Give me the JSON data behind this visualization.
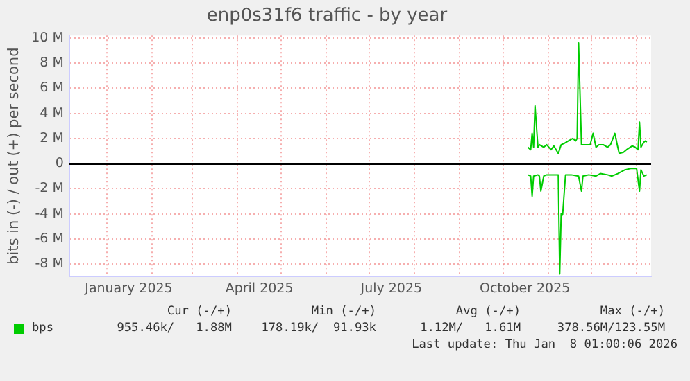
{
  "chart_data": {
    "type": "line",
    "title": "enp0s31f6 traffic - by year",
    "ylabel": "bits in (-) / out (+) per second",
    "xlim": [
      "2024-12-06",
      "2026-01-11"
    ],
    "xticks": [
      {
        "value": "2025-01-01",
        "label": null
      },
      {
        "value": "2025-01-16",
        "label": "January 2025"
      },
      {
        "value": "2025-02-01",
        "label": null
      },
      {
        "value": "2025-03-01",
        "label": null
      },
      {
        "value": "2025-04-01",
        "label": null
      },
      {
        "value": "2025-04-16",
        "label": "April 2025"
      },
      {
        "value": "2025-05-01",
        "label": null
      },
      {
        "value": "2025-06-01",
        "label": null
      },
      {
        "value": "2025-07-01",
        "label": null
      },
      {
        "value": "2025-07-16",
        "label": "July 2025"
      },
      {
        "value": "2025-08-01",
        "label": null
      },
      {
        "value": "2025-09-01",
        "label": null
      },
      {
        "value": "2025-10-01",
        "label": null
      },
      {
        "value": "2025-10-16",
        "label": "October 2025"
      },
      {
        "value": "2025-11-01",
        "label": null
      },
      {
        "value": "2025-12-01",
        "label": null
      },
      {
        "value": "2026-01-01",
        "label": null
      }
    ],
    "ylim": [
      -9,
      10.2
    ],
    "yticks": [
      {
        "value": -8,
        "label": "-8 M"
      },
      {
        "value": -6,
        "label": "-6 M"
      },
      {
        "value": -4,
        "label": "-4 M"
      },
      {
        "value": -2,
        "label": "-2 M"
      },
      0,
      {
        "value": 2,
        "label": "2 M"
      },
      {
        "value": 4,
        "label": "4 M"
      },
      {
        "value": 6,
        "label": "6 M"
      },
      {
        "value": 8,
        "label": "8 M"
      },
      {
        "value": 10,
        "label": "10 M"
      }
    ],
    "grid": true,
    "legend": "bottom left",
    "marker": "none",
    "ref_lines": [
      {
        "axis": "y",
        "value": 0,
        "color": "#000000"
      }
    ],
    "series": [
      {
        "name": "bps",
        "color": "#00cc00",
        "x": [
          "2025-10-18",
          "2025-10-20",
          "2025-10-21",
          "2025-10-22",
          "2025-10-23",
          "2025-10-25",
          "2025-10-26",
          "2025-10-29",
          "2025-10-31",
          "2025-11-03",
          "2025-11-05",
          "2025-11-08",
          "2025-11-10",
          "2025-11-12",
          "2025-11-15",
          "2025-11-18",
          "2025-11-20",
          "2025-11-21",
          "2025-11-22",
          "2025-11-24",
          "2025-11-27",
          "2025-11-30",
          "2025-12-02",
          "2025-12-04",
          "2025-12-06",
          "2025-12-09",
          "2025-12-12",
          "2025-12-14",
          "2025-12-17",
          "2025-12-19",
          "2025-12-20",
          "2025-12-23",
          "2025-12-25",
          "2025-12-29",
          "2025-12-31",
          "2026-01-02",
          "2026-01-03",
          "2026-01-04",
          "2026-01-06",
          "2026-01-07",
          "2026-01-08"
        ],
        "values": [
          1.3,
          1.1,
          2.4,
          1.3,
          4.6,
          1.3,
          1.5,
          1.3,
          1.5,
          1.1,
          1.4,
          0.8,
          1.5,
          1.6,
          1.8,
          2,
          1.8,
          2,
          9.6,
          1.5,
          1.5,
          1.5,
          2.4,
          1.3,
          1.5,
          1.5,
          1.3,
          1.5,
          2.4,
          1.3,
          0.8,
          0.9,
          1.1,
          1.4,
          1.3,
          1.1,
          3.3,
          1.3,
          1.7,
          1.8,
          1.7
        ]
      },
      {
        "color": "#00cc00",
        "x": [
          "2025-10-18",
          "2025-10-20",
          "2025-10-21",
          "2025-10-22",
          "2025-10-25",
          "2025-10-26",
          "2025-10-27",
          "2025-10-29",
          "2025-10-31",
          "2025-11-04",
          "2025-11-08",
          "2025-11-09",
          "2025-11-10",
          "2025-11-11",
          "2025-11-13",
          "2025-11-17",
          "2025-11-22",
          "2025-11-24",
          "2025-11-25",
          "2025-11-29",
          "2025-12-04",
          "2025-12-07",
          "2025-12-12",
          "2025-12-15",
          "2025-12-19",
          "2025-12-24",
          "2025-12-28",
          "2026-01-01",
          "2026-01-03",
          "2026-01-04",
          "2026-01-06",
          "2026-01-08"
        ],
        "values": [
          -0.9,
          -1,
          -2.6,
          -1,
          -0.9,
          -1,
          -2.2,
          -1,
          -0.9,
          -0.9,
          -0.9,
          -8.8,
          -4,
          -4.1,
          -0.9,
          -0.9,
          -1,
          -2.2,
          -1,
          -0.9,
          -1,
          -0.8,
          -0.9,
          -1,
          -0.8,
          -0.5,
          -0.4,
          -0.4,
          -2.2,
          -0.5,
          -1,
          -0.9
        ]
      }
    ],
    "annotations": [
      "Cur (-/+)",
      "Min (-/+)",
      "Avg (-/+)",
      "Max (-/+)",
      "955.46k/   1.88M",
      "178.19k/  91.93k",
      "1.12M/   1.61M",
      "378.56M/123.55M",
      "Last update: Thu Jan  8 01:00:06 2026"
    ]
  }
}
